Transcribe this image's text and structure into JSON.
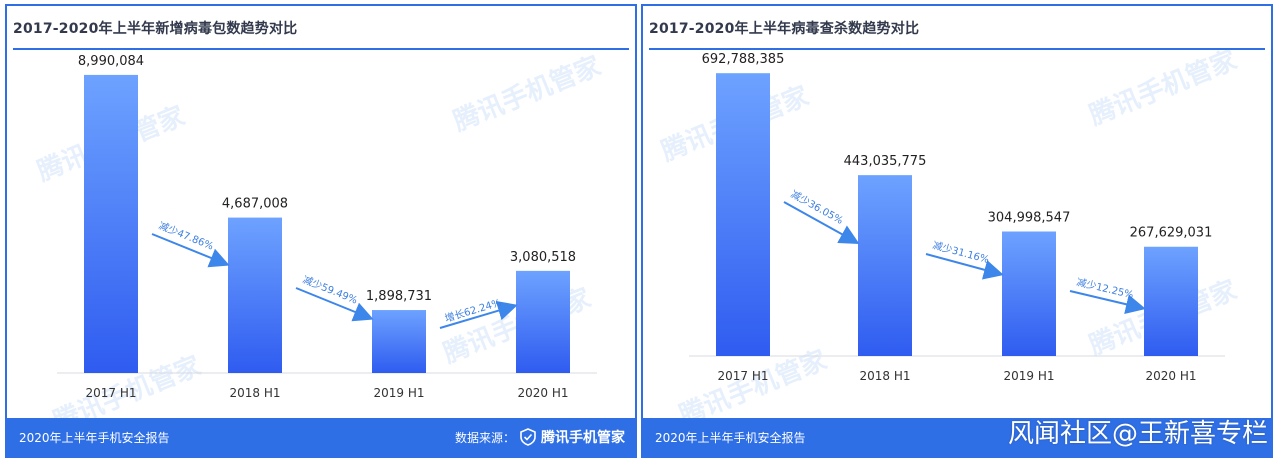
{
  "colors": {
    "frame": "#2f6fe6",
    "bar_top": "#6ea2ff",
    "bar_bottom": "#2f5cf0",
    "arrow": "#3d86ea",
    "change_text": "#3d7fe0",
    "title_text": "#333a4d",
    "value_text": "#222222"
  },
  "charts": [
    {
      "title": "2017-2020年上半年新增病毒包数趋势对比",
      "footer_report": "2020年上半年手机安全报告",
      "footer_source_label": "数据来源：",
      "footer_brand": "腾讯手机管家",
      "watermark": "腾讯手机管家"
    },
    {
      "title": "2017-2020年上半年病毒查杀数趋势对比",
      "footer_report": "2020年上半年手机安全报告",
      "watermark": "腾讯手机管家"
    }
  ],
  "chart_data": [
    {
      "type": "bar",
      "title": "2017-2020年上半年新增病毒包数趋势对比",
      "categories": [
        "2017 H1",
        "2018 H1",
        "2019 H1",
        "2020 H1"
      ],
      "values": [
        8990084,
        4687008,
        1898731,
        3080518
      ],
      "value_labels": [
        "8,990,084",
        "4,687,008",
        "1,898,731",
        "3,080,518"
      ],
      "changes": [
        "减少47.86%",
        "减少59.49%",
        "增长62.24%"
      ],
      "ylim": [
        0,
        9500000
      ],
      "grid": false,
      "legend": "none"
    },
    {
      "type": "bar",
      "title": "2017-2020年上半年病毒查杀数趋势对比",
      "categories": [
        "2017 H1",
        "2018 H1",
        "2019 H1",
        "2020 H1"
      ],
      "values": [
        692788385,
        443035775,
        304998547,
        267629031
      ],
      "value_labels": [
        "692,788,385",
        "443,035,775",
        "304,998,547",
        "267,629,031"
      ],
      "changes": [
        "减少36.05%",
        "减少31.16%",
        "减少12.25%"
      ],
      "ylim": [
        0,
        730000000
      ],
      "grid": false,
      "legend": "none"
    }
  ],
  "overlay_caption": "风闻社区@王新喜专栏"
}
